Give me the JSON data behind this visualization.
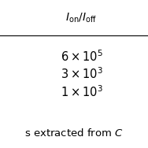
{
  "header": "$\\it{I}_{\\rm{on}}/\\it{I}_{\\rm{off}}$",
  "rows": [
    "$6 \\times 10^{5}$",
    "$3 \\times 10^{3}$",
    "$1 \\times 10^{3}$"
  ],
  "footer": "s extracted from $\\it{C}$",
  "background_color": "#ffffff",
  "text_color": "#000000",
  "header_fontsize": 10,
  "row_fontsize": 10.5,
  "footer_fontsize": 9.5
}
